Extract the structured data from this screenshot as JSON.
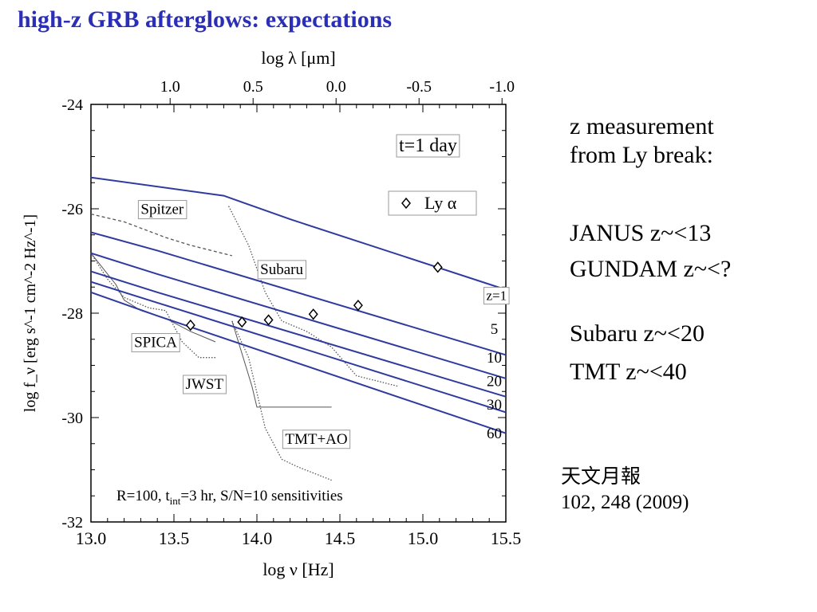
{
  "slide_title": "high-z GRB afterglows: expectations",
  "notes": {
    "ly_break_line1": "z measurement",
    "ly_break_line2": "from Ly break:",
    "janus": "JANUS z~<13",
    "gundam": "GUNDAM z~<?",
    "subaru": "Subaru z~<20",
    "tmt": "TMT z~<40"
  },
  "citation": {
    "journal": "天文月報",
    "volume": "102, 248 (2009)"
  },
  "colors": {
    "title": "#2b2fb8",
    "model_line": "#2f3a9e",
    "instrument_line": "#555555"
  },
  "chart_data": {
    "type": "line",
    "xlabel": "log ν [Hz]",
    "ylabel": "log f_ν [erg s^-1 cm^-2 Hz^-1]",
    "top_xlabel": "log λ [μm]",
    "xlim": [
      13.0,
      15.5
    ],
    "ylim": [
      -32,
      -24
    ],
    "x_ticks": [
      "13.0",
      "13.5",
      "14.0",
      "14.5",
      "15.0",
      "15.5"
    ],
    "y_ticks": [
      "-24",
      "-26",
      "-28",
      "-30",
      "-32"
    ],
    "top_ticks": [
      {
        "label": "1.0",
        "nu": 13.477
      },
      {
        "label": "0.5",
        "nu": 13.977
      },
      {
        "label": "0.0",
        "nu": 14.477
      },
      {
        "label": "-0.5",
        "nu": 14.977
      },
      {
        "label": "-1.0",
        "nu": 15.477
      }
    ],
    "time_label": "t=1 day",
    "legend_label": "Ly α",
    "legend_position": "upper-right",
    "footer_label_text": "R=100, t",
    "footer_label_sub": "int",
    "footer_label_tail": "=3 hr, S/N=10 sensitivities",
    "series": [
      {
        "label": "z=1",
        "boxed": true,
        "points": [
          [
            13.0,
            -25.4
          ],
          [
            13.8,
            -25.75
          ],
          [
            14.2,
            -26.2
          ],
          [
            15.5,
            -27.55
          ]
        ],
        "ly_alpha": [
          15.09,
          -27.12
        ],
        "label_pos": [
          15.43,
          -27.75
        ]
      },
      {
        "label": "5",
        "points": [
          [
            13.0,
            -26.45
          ],
          [
            13.4,
            -26.8
          ],
          [
            15.5,
            -28.8
          ]
        ],
        "ly_alpha": [
          14.61,
          -27.85
        ],
        "label_pos": [
          15.43,
          -28.4
        ]
      },
      {
        "label": "10",
        "points": [
          [
            13.0,
            -26.85
          ],
          [
            13.4,
            -27.25
          ],
          [
            15.5,
            -29.25
          ]
        ],
        "ly_alpha": [
          14.34,
          -28.02
        ],
        "label_pos": [
          15.43,
          -28.95
        ]
      },
      {
        "label": "20",
        "points": [
          [
            13.0,
            -27.2
          ],
          [
            13.4,
            -27.6
          ],
          [
            15.5,
            -29.6
          ]
        ],
        "ly_alpha": [
          14.07,
          -28.13
        ],
        "label_pos": [
          15.43,
          -29.4
        ]
      },
      {
        "label": "30",
        "points": [
          [
            13.0,
            -27.4
          ],
          [
            13.4,
            -27.8
          ],
          [
            15.5,
            -29.9
          ]
        ],
        "ly_alpha": [
          13.91,
          -28.17
        ],
        "label_pos": [
          15.43,
          -29.85
        ]
      },
      {
        "label": "60",
        "points": [
          [
            13.0,
            -27.6
          ],
          [
            13.4,
            -28.05
          ],
          [
            15.5,
            -30.3
          ]
        ],
        "ly_alpha": [
          13.6,
          -28.23
        ],
        "label_pos": [
          15.43,
          -30.4
        ]
      }
    ],
    "instruments": [
      {
        "label": "Spitzer",
        "style": "dashed",
        "label_pos": [
          13.3,
          -26.1
        ],
        "points": [
          [
            13.0,
            -26.1
          ],
          [
            13.2,
            -26.25
          ],
          [
            13.45,
            -26.55
          ],
          [
            13.6,
            -26.7
          ],
          [
            13.85,
            -26.9
          ]
        ]
      },
      {
        "label": "Subaru",
        "style": "dotted",
        "label_pos": [
          14.02,
          -27.25
        ],
        "points": [
          [
            13.83,
            -25.95
          ],
          [
            13.95,
            -26.7
          ],
          [
            14.05,
            -27.6
          ],
          [
            14.15,
            -28.15
          ],
          [
            14.3,
            -28.35
          ],
          [
            14.45,
            -28.65
          ],
          [
            14.6,
            -29.2
          ],
          [
            14.85,
            -29.4
          ]
        ]
      },
      {
        "label": "SPICA",
        "style": "solid-thin",
        "label_pos": [
          13.26,
          -28.65
        ],
        "points": [
          [
            13.0,
            -26.85
          ],
          [
            13.1,
            -27.25
          ],
          [
            13.15,
            -27.45
          ],
          [
            13.2,
            -27.75
          ],
          [
            13.3,
            -27.95
          ],
          [
            13.45,
            -28.1
          ],
          [
            13.6,
            -28.35
          ],
          [
            13.75,
            -28.55
          ]
        ]
      },
      {
        "label": "JWST",
        "style": "dotted",
        "label_pos": [
          13.57,
          -29.45
        ],
        "points": [
          [
            13.0,
            -26.85
          ],
          [
            13.1,
            -27.35
          ],
          [
            13.2,
            -27.7
          ],
          [
            13.35,
            -27.9
          ],
          [
            13.45,
            -27.95
          ],
          [
            13.55,
            -28.55
          ],
          [
            13.65,
            -28.85
          ],
          [
            13.75,
            -28.85
          ]
        ]
      },
      {
        "label": "TMT+AO",
        "style": "dotted",
        "label_pos": [
          14.17,
          -30.5
        ],
        "points": [
          [
            13.85,
            -28.15
          ],
          [
            13.95,
            -28.85
          ],
          [
            14.05,
            -30.2
          ],
          [
            14.15,
            -30.8
          ],
          [
            14.25,
            -30.95
          ],
          [
            14.45,
            -31.2
          ]
        ]
      },
      {
        "label": "",
        "style": "solid-thin",
        "points": [
          [
            13.85,
            -28.15
          ],
          [
            13.97,
            -29.4
          ],
          [
            14.0,
            -29.8
          ],
          [
            14.2,
            -29.8
          ],
          [
            14.45,
            -29.8
          ]
        ]
      }
    ]
  }
}
